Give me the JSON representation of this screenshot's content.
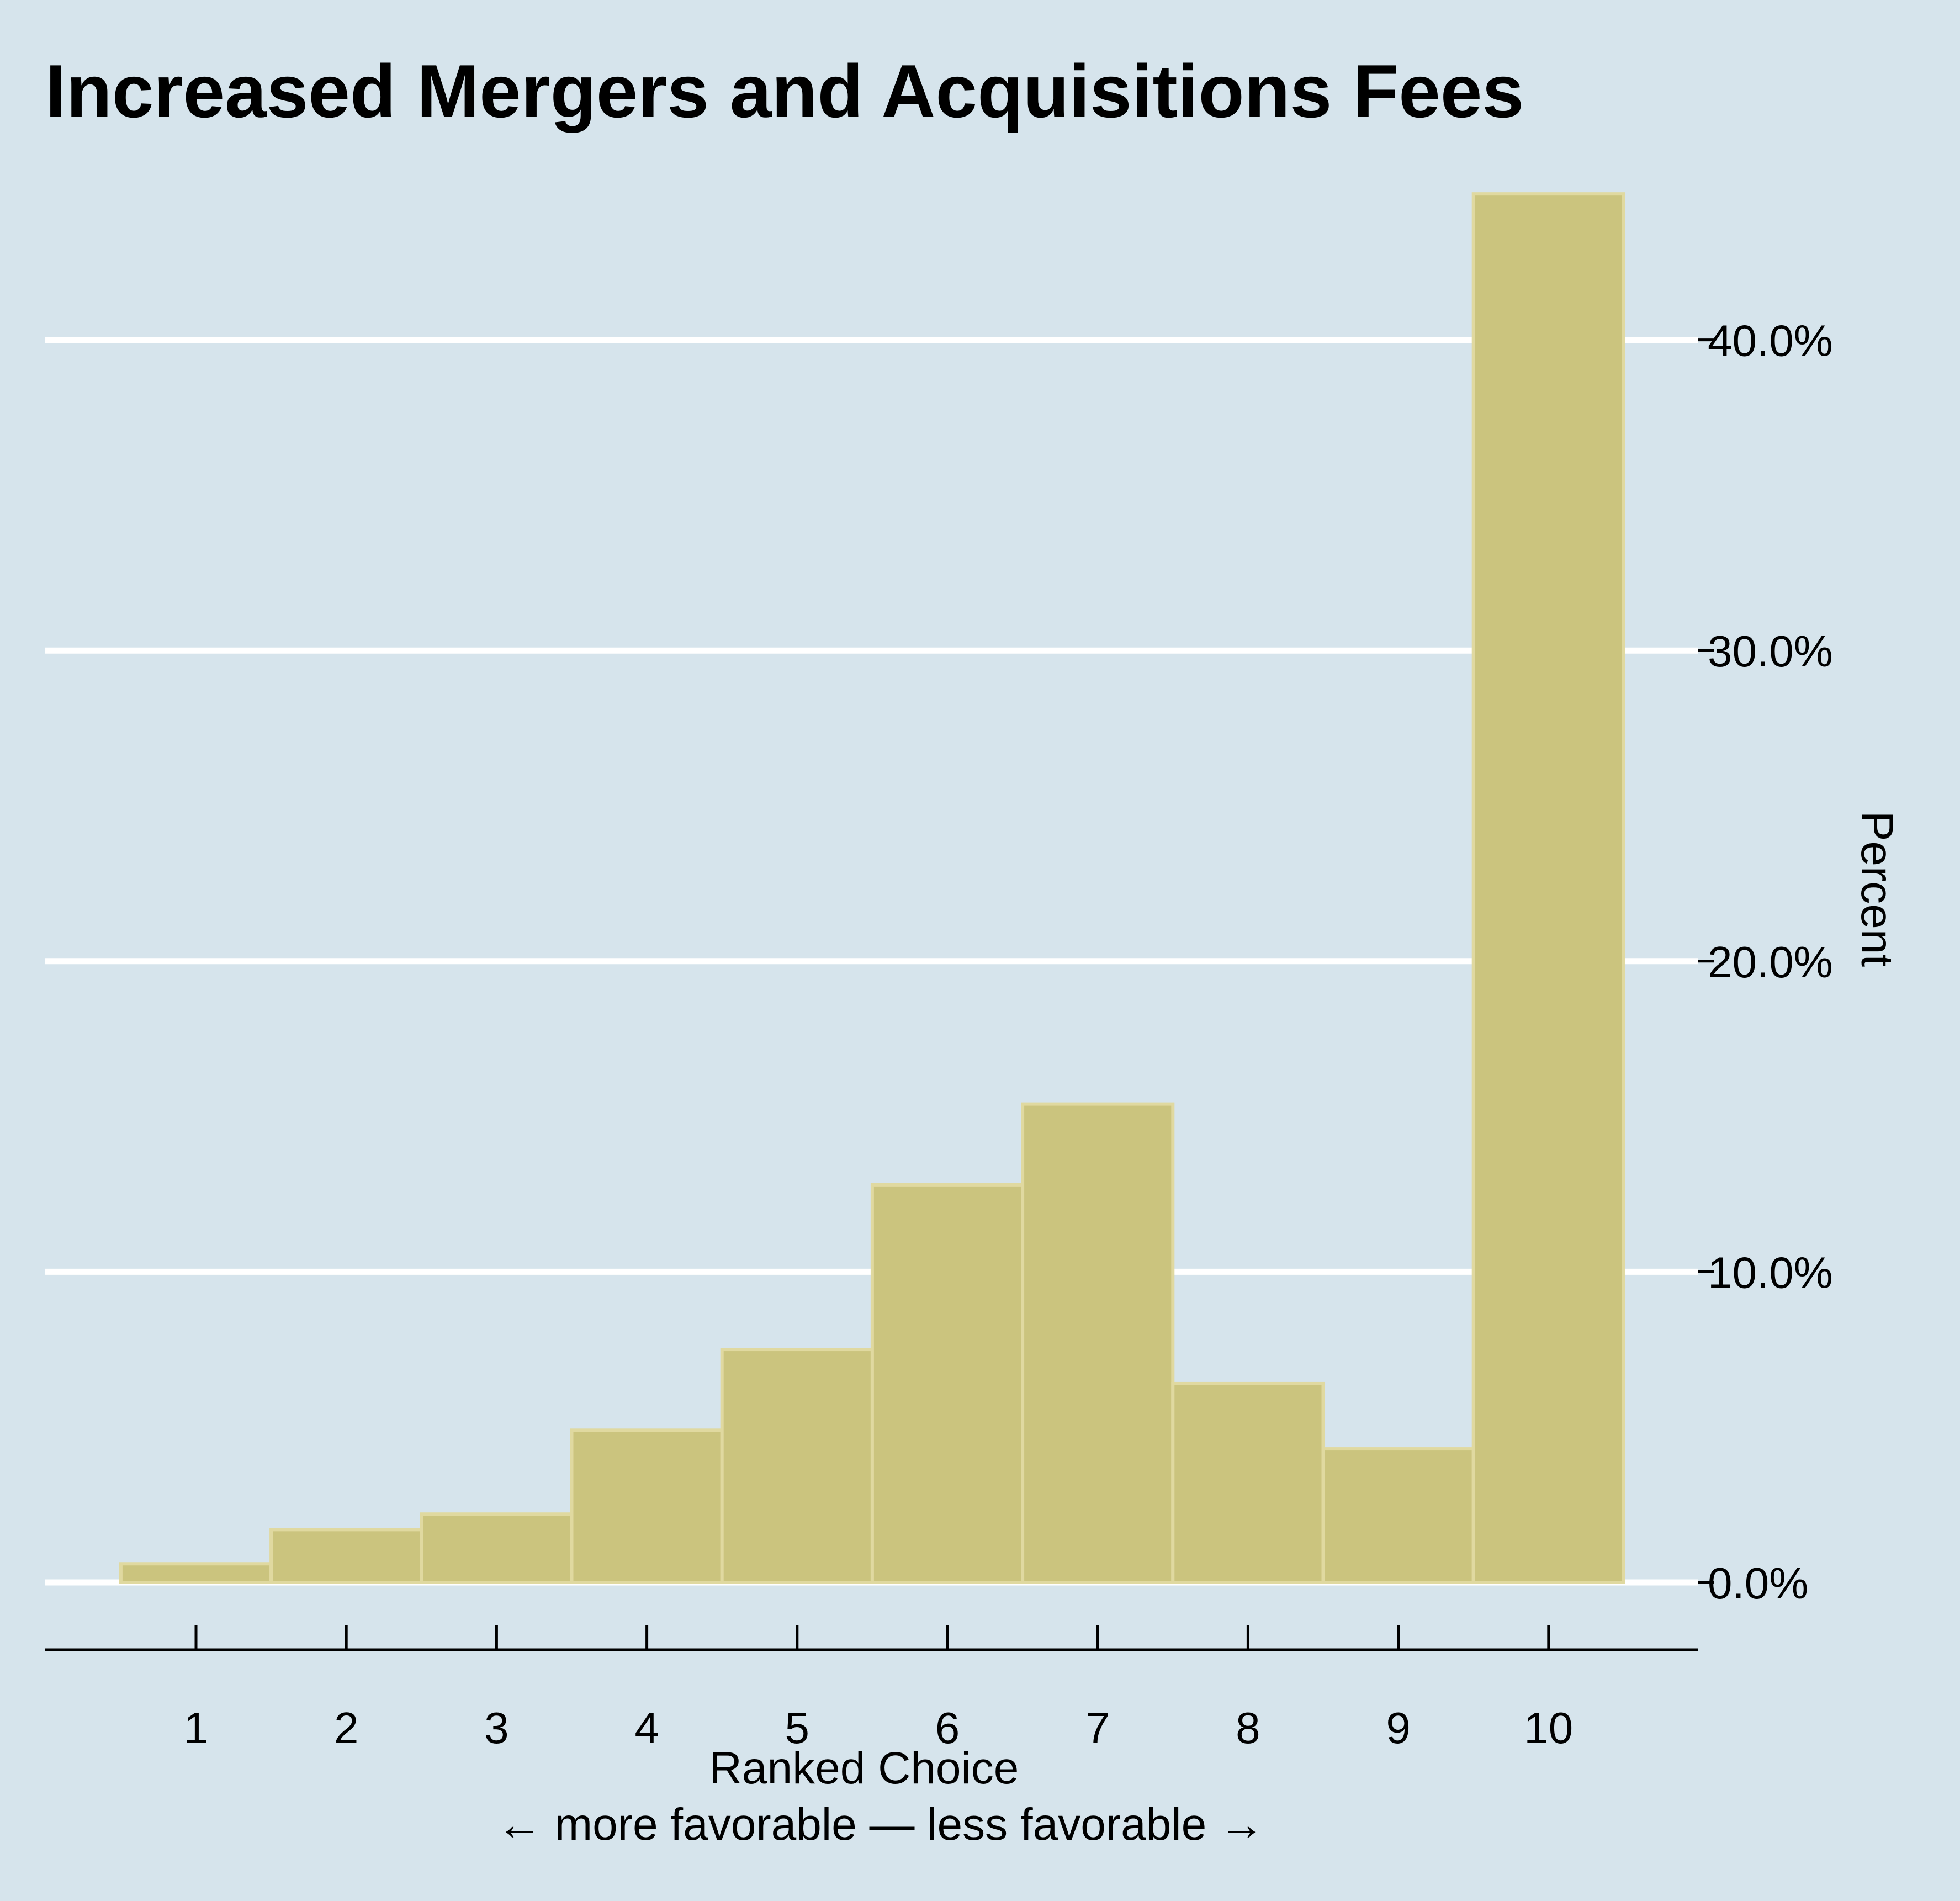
{
  "colors": {
    "background": "#d6e4ec",
    "bar_fill": "#cbc47e",
    "bar_stroke": "#e0d9a0",
    "gridline": "#ffffff",
    "axis": "#000000"
  },
  "chart_data": {
    "type": "bar",
    "title": "Increased Mergers and Acquisitions Fees",
    "xlabel": "Ranked Choice",
    "xlabel_sub": "← more favorable — less favorable →",
    "ylabel": "Percent",
    "y_axis_position": "right",
    "grid": true,
    "categories": [
      "1",
      "2",
      "3",
      "4",
      "5",
      "6",
      "7",
      "8",
      "9",
      "10"
    ],
    "values": [
      0.6,
      1.7,
      2.2,
      4.9,
      7.5,
      12.8,
      15.4,
      6.4,
      4.3,
      44.7
    ],
    "ylim": [
      0,
      45
    ],
    "yticks": [
      0,
      10,
      20,
      30,
      40
    ],
    "ytick_labels": [
      "0.0%",
      "10.0%",
      "20.0%",
      "30.0%",
      "40.0%"
    ]
  }
}
